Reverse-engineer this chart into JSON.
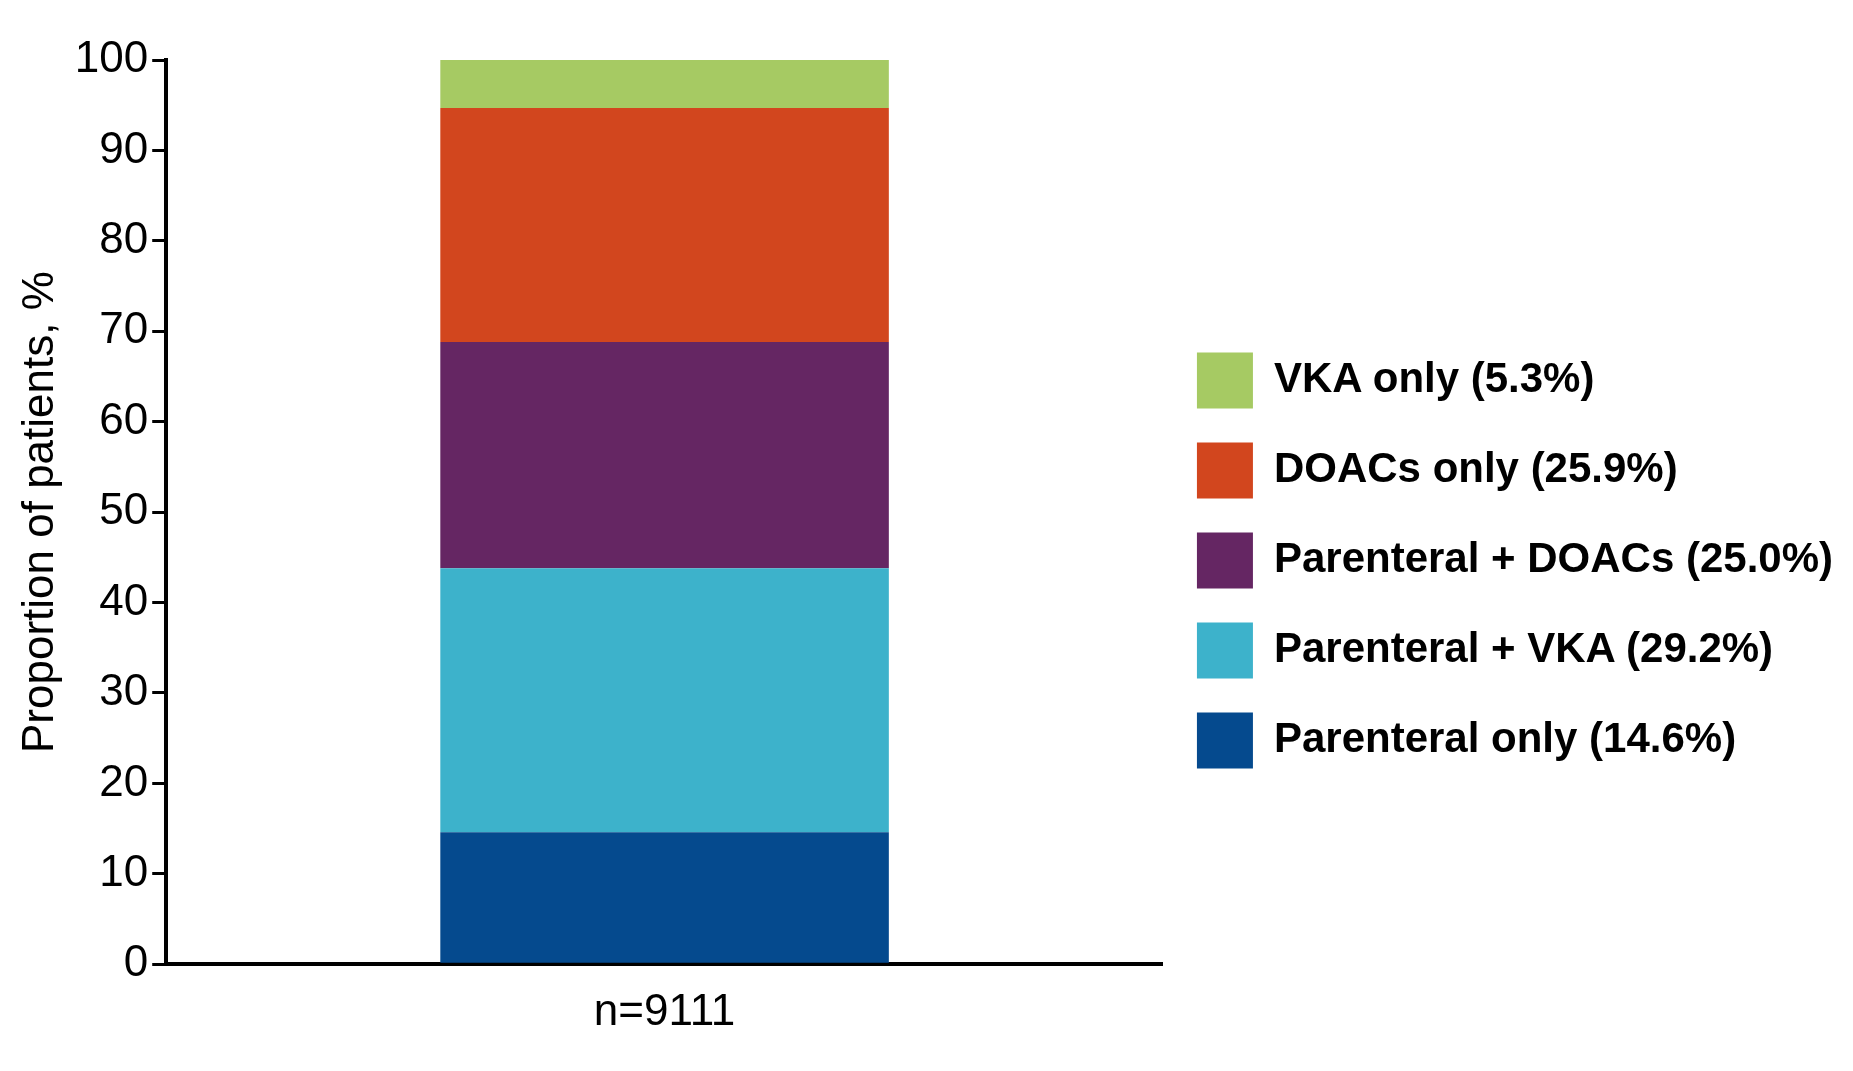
{
  "chart_data": {
    "type": "bar",
    "stacked": true,
    "ylabel": "Proportion of patients, %",
    "categories": [
      "n=9111"
    ],
    "series": [
      {
        "name": "Parenteral only (14.6%)",
        "color": "#054a8e",
        "values": [
          14.6
        ]
      },
      {
        "name": "Parenteral + VKA (29.2%)",
        "color": "#3db2cb",
        "values": [
          29.2
        ]
      },
      {
        "name": "Parenteral + DOACs (25.0%)",
        "color": "#652663",
        "values": [
          25.0
        ]
      },
      {
        "name": "DOACs only (25.9%)",
        "color": "#d2461e",
        "values": [
          25.9
        ]
      },
      {
        "name": "VKA only (5.3%)",
        "color": "#a6ca63",
        "values": [
          5.3
        ]
      }
    ],
    "ylim": [
      0,
      100
    ],
    "yticks": [
      0,
      10,
      20,
      30,
      40,
      50,
      60,
      70,
      80,
      90,
      100
    ],
    "grid": false,
    "legend": "right"
  }
}
